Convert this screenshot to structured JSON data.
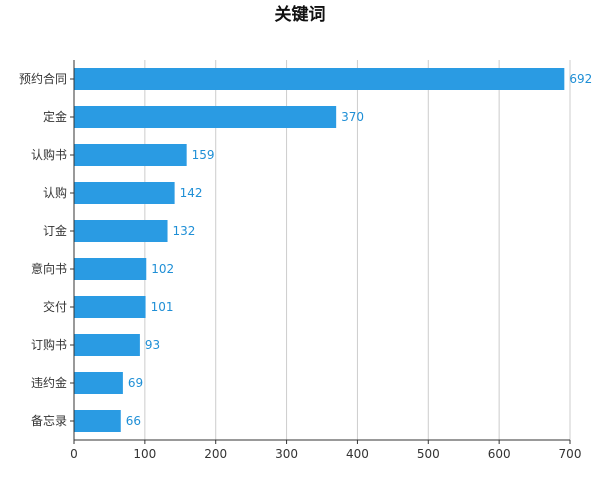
{
  "chart_data": {
    "type": "bar",
    "orientation": "horizontal",
    "title": "关键词",
    "categories": [
      "预约合同",
      "定金",
      "认购书",
      "认购",
      "订金",
      "意向书",
      "交付",
      "订购书",
      "违约金",
      "备忘录"
    ],
    "values": [
      692,
      370,
      159,
      142,
      132,
      102,
      101,
      93,
      69,
      66
    ],
    "x_ticks": [
      0,
      100,
      200,
      300,
      400,
      500,
      600,
      700
    ],
    "xlim": [
      0,
      700
    ],
    "xlabel": "",
    "ylabel": "",
    "grid": "vertical",
    "legend": "none",
    "data_labels": true,
    "colors": {
      "bar": "#2a9be3",
      "label": "#1f8fd6",
      "grid": "#cccccc",
      "axis": "#333333",
      "text": "#333333"
    }
  }
}
